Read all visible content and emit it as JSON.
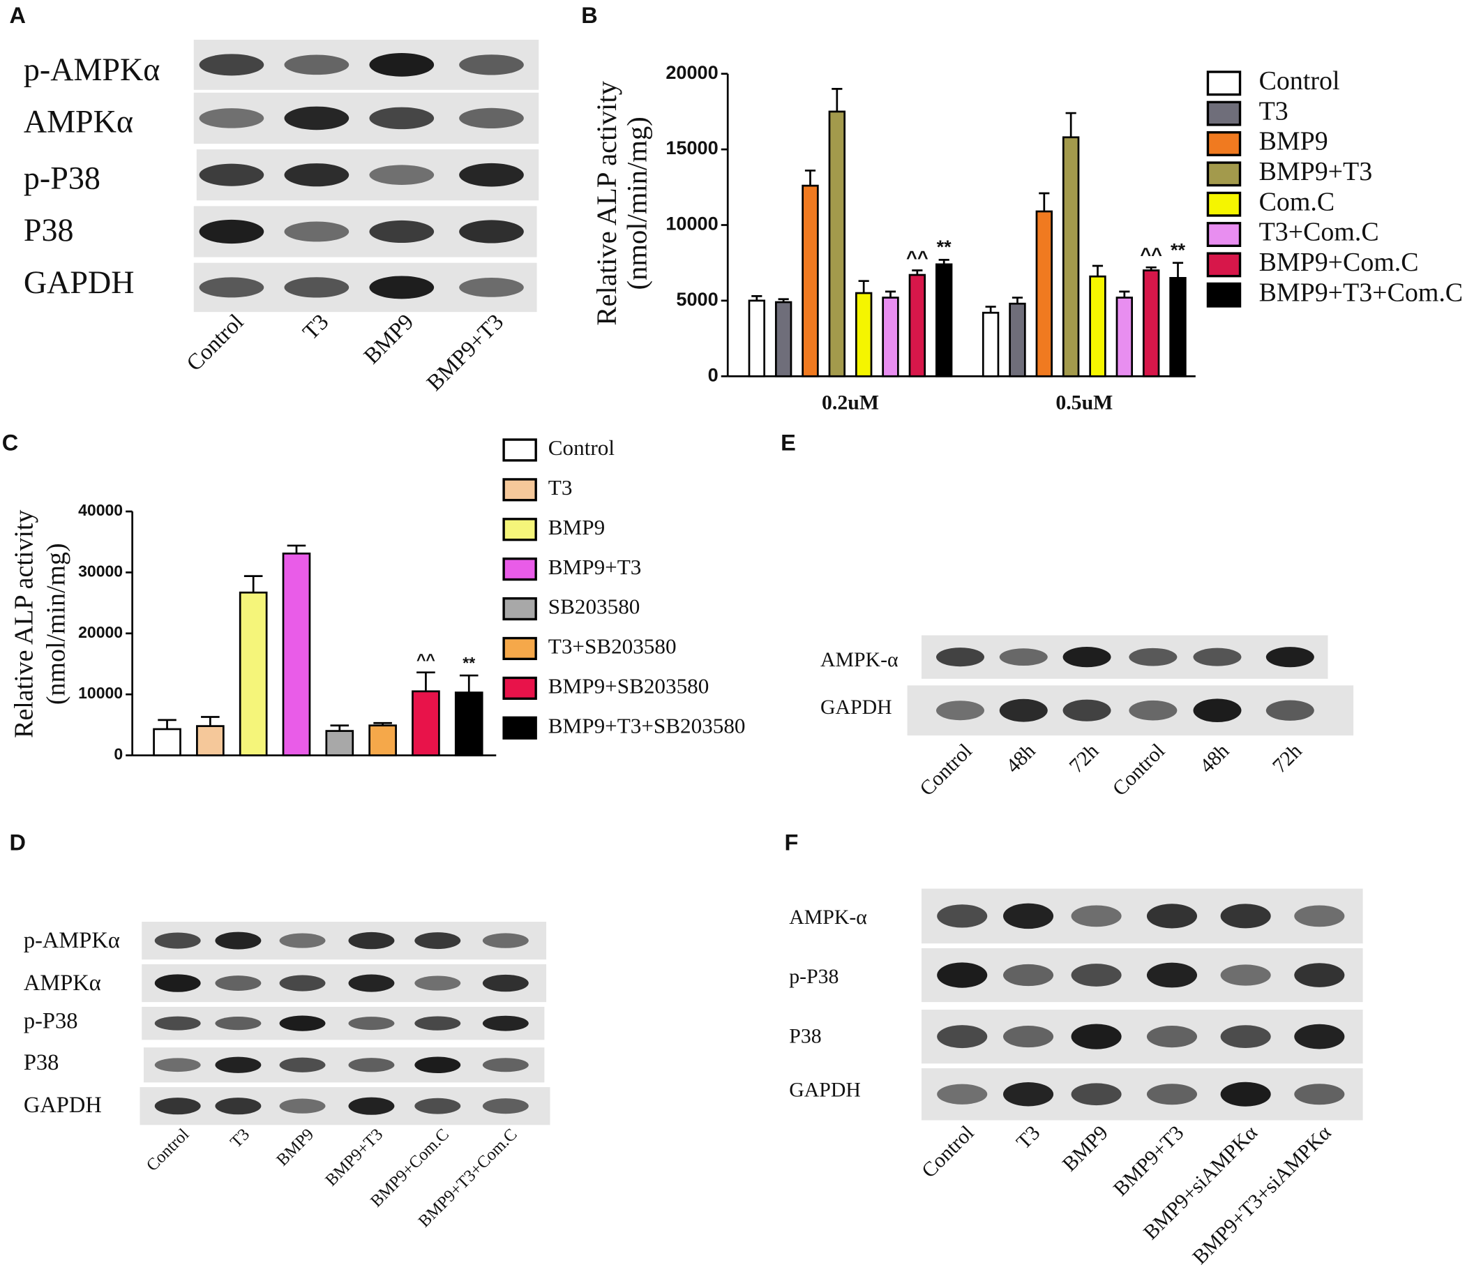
{
  "chart_data": [
    {
      "type": "grouped_bar",
      "label": "B",
      "ylabel": [
        "Relative ALP activity",
        "(nmol/min/mg)"
      ],
      "categories": [
        "0.2uM",
        "0.5uM"
      ],
      "ylim": [
        0,
        20000
      ],
      "yticks": [
        0,
        5000,
        10000,
        15000,
        20000
      ],
      "series": [
        {
          "name": "Control",
          "color": "#ffffff",
          "values": [
            5000,
            4200
          ],
          "errors": [
            300,
            400
          ]
        },
        {
          "name": "T3",
          "color": "#6f6e7a",
          "values": [
            4900,
            4800
          ],
          "errors": [
            200,
            400
          ]
        },
        {
          "name": "BMP9",
          "color": "#f07a20",
          "values": [
            12600,
            10900
          ],
          "errors": [
            1000,
            1200
          ]
        },
        {
          "name": "BMP9+T3",
          "color": "#a39a4c",
          "values": [
            17500,
            15800
          ],
          "errors": [
            1500,
            1600
          ]
        },
        {
          "name": "Com.C",
          "color": "#f5f500",
          "values": [
            5500,
            6600
          ],
          "errors": [
            800,
            700
          ]
        },
        {
          "name": "T3+Com.C",
          "color": "#e88ef0",
          "values": [
            5200,
            5200
          ],
          "errors": [
            400,
            400
          ]
        },
        {
          "name": "BMP9+Com.C",
          "color": "#d7174a",
          "values": [
            6700,
            7000
          ],
          "errors": [
            300,
            200
          ],
          "annotations": [
            "^^",
            "^^"
          ]
        },
        {
          "name": "BMP9+T3+Com.C",
          "color": "#000000",
          "values": [
            7400,
            6500
          ],
          "errors": [
            300,
            1000
          ],
          "annotations": [
            "**",
            "**"
          ]
        }
      ]
    },
    {
      "type": "bar",
      "label": "C",
      "ylabel": [
        "Relative ALP activity",
        "(nmol/min/mg)"
      ],
      "categories": [
        "Control",
        "T3",
        "BMP9",
        "BMP9+T3",
        "SB203580",
        "T3+SB203580",
        "BMP9+SB203580",
        "BMP9+T3+SB203580"
      ],
      "values": [
        4300,
        4800,
        26700,
        33100,
        4000,
        4900,
        10500,
        10300
      ],
      "errors": [
        1500,
        1500,
        2700,
        1300,
        900,
        400,
        3100,
        2800
      ],
      "colors": [
        "#ffffff",
        "#f5c89a",
        "#f5f57a",
        "#e95ce8",
        "#a8a8a8",
        "#f5a84a",
        "#e8134a",
        "#000000"
      ],
      "annotations": [
        null,
        null,
        null,
        null,
        null,
        null,
        "^^",
        "**"
      ],
      "ylim": [
        0,
        40000
      ],
      "yticks": [
        0,
        10000,
        20000,
        30000,
        40000
      ]
    }
  ],
  "blots": [
    {
      "label": "A",
      "rows": [
        "p-AMPKα",
        "AMPKα",
        "p-P38",
        "P38",
        "GAPDH"
      ],
      "lanes": [
        "Control",
        "T3",
        "BMP9",
        "BMP9+T3"
      ]
    },
    {
      "label": "D",
      "rows": [
        "p-AMPKα",
        "AMPKα",
        "p-P38",
        "P38",
        "GAPDH"
      ],
      "lanes": [
        "Control",
        "T3",
        "BMP9",
        "BMP9+T3",
        "BMP9+Com.C",
        "BMP9+T3+Com.C"
      ]
    },
    {
      "label": "E",
      "rows": [
        "AMPK-α",
        "GAPDH"
      ],
      "lanes": [
        "Control",
        "48h",
        "72h",
        "Control",
        "48h",
        "72h"
      ]
    },
    {
      "label": "F",
      "rows": [
        "AMPK-α",
        "p-P38",
        "P38",
        "GAPDH"
      ],
      "lanes": [
        "Control",
        "T3",
        "BMP9",
        "BMP9+T3",
        "BMP9+siAMPKα",
        "BMP9+T3+siAMPKα"
      ]
    }
  ]
}
